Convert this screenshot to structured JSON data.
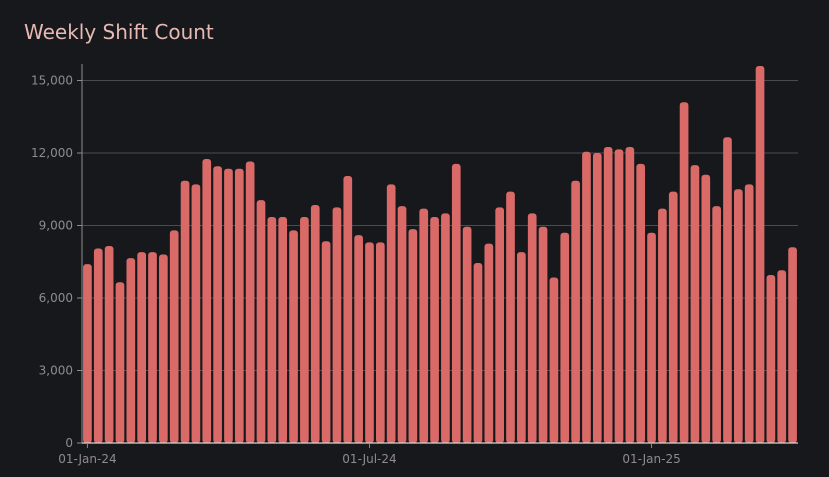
{
  "chart_data": {
    "type": "bar",
    "title": "Weekly Shift Count",
    "xlabel": "",
    "ylabel": "",
    "ylim": [
      0,
      15600
    ],
    "y_ticks": [
      0,
      3000,
      6000,
      9000,
      12000,
      15000
    ],
    "y_tick_labels": [
      "0",
      "3,000",
      "6,000",
      "9,000",
      "12,000",
      "15,000"
    ],
    "x_tick_labels": [
      {
        "label": "01-Jan-24",
        "index": 0
      },
      {
        "label": "01-Jul-24",
        "index": 26
      },
      {
        "label": "01-Jan-25",
        "index": 52
      }
    ],
    "grid": true,
    "bar_color": "#d96a67",
    "grid_color": "#4a4b50",
    "categories": [
      "2024-01-01",
      "2024-01-08",
      "2024-01-15",
      "2024-01-22",
      "2024-01-29",
      "2024-02-05",
      "2024-02-12",
      "2024-02-19",
      "2024-02-26",
      "2024-03-04",
      "2024-03-11",
      "2024-03-18",
      "2024-03-25",
      "2024-04-01",
      "2024-04-08",
      "2024-04-15",
      "2024-04-22",
      "2024-04-29",
      "2024-05-06",
      "2024-05-13",
      "2024-05-20",
      "2024-05-27",
      "2024-06-03",
      "2024-06-10",
      "2024-06-17",
      "2024-06-24",
      "2024-07-01",
      "2024-07-08",
      "2024-07-15",
      "2024-07-22",
      "2024-07-29",
      "2024-08-05",
      "2024-08-12",
      "2024-08-19",
      "2024-08-26",
      "2024-09-02",
      "2024-09-09",
      "2024-09-16",
      "2024-09-23",
      "2024-09-30",
      "2024-10-07",
      "2024-10-14",
      "2024-10-21",
      "2024-10-28",
      "2024-11-04",
      "2024-11-11",
      "2024-11-18",
      "2024-11-25",
      "2024-12-02",
      "2024-12-09",
      "2024-12-16",
      "2024-12-23",
      "2024-12-30",
      "2025-01-06",
      "2025-01-13",
      "2025-01-20",
      "2025-01-27",
      "2025-02-03",
      "2025-02-10",
      "2025-02-17",
      "2025-02-24",
      "2025-03-03",
      "2025-03-10",
      "2025-03-17",
      "2025-03-24",
      "2025-03-31"
    ],
    "values": [
      7400,
      8050,
      8150,
      6650,
      7650,
      7900,
      7900,
      7800,
      8800,
      10850,
      10700,
      11750,
      11450,
      11350,
      11350,
      11650,
      10050,
      9350,
      9350,
      8800,
      9350,
      9850,
      8350,
      9750,
      11050,
      8600,
      8300,
      8300,
      10700,
      9800,
      8850,
      9700,
      9350,
      9500,
      11550,
      8950,
      7450,
      8250,
      9750,
      10400,
      7900,
      9500,
      8950,
      6850,
      8700,
      10850,
      12050,
      12000,
      12250,
      12150,
      12250,
      11550,
      8700,
      9700,
      10400,
      14100,
      11500,
      11100,
      9800,
      12650,
      10500,
      10700,
      15600,
      6950,
      7150,
      8100
    ]
  }
}
